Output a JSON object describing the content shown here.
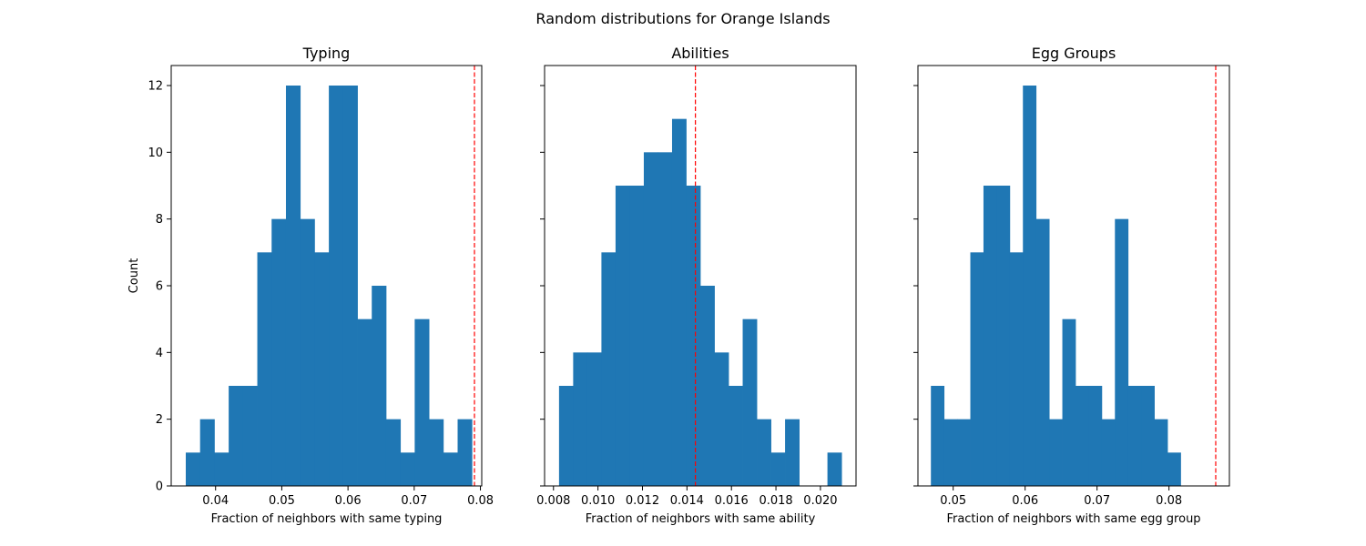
{
  "figure": {
    "title": "Random distributions for Orange Islands"
  },
  "colors": {
    "bar": "#1f77b4",
    "reference_line": "#ff0000"
  },
  "chart_data": [
    {
      "type": "bar",
      "title": "Typing",
      "xlabel": "Fraction of neighbors with same typing",
      "ylabel": "Count",
      "xlim": [
        0.0333,
        0.0802
      ],
      "ylim": [
        0,
        12.6
      ],
      "xticks": [
        0.04,
        0.05,
        0.06,
        0.07,
        0.08
      ],
      "xtick_labels": [
        "0.04",
        "0.05",
        "0.06",
        "0.07",
        "0.08"
      ],
      "yticks": [
        0,
        2,
        4,
        6,
        8,
        10,
        12
      ],
      "ytick_labels": [
        "0",
        "2",
        "4",
        "6",
        "8",
        "10",
        "12"
      ],
      "bin_start": 0.0355,
      "bin_width": 0.0021609,
      "counts": [
        1,
        2,
        1,
        3,
        3,
        7,
        8,
        12,
        8,
        7,
        12,
        12,
        5,
        6,
        2,
        1,
        5,
        2,
        1,
        2
      ],
      "reference_line": 0.0791
    },
    {
      "type": "bar",
      "title": "Abilities",
      "xlabel": "Fraction of neighbors with same ability",
      "ylabel": "",
      "xlim": [
        0.0076,
        0.0216
      ],
      "ylim": [
        0,
        12.6
      ],
      "xticks": [
        0.008,
        0.01,
        0.012,
        0.014,
        0.016,
        0.018,
        0.02
      ],
      "xtick_labels": [
        "0.008",
        "0.010",
        "0.012",
        "0.014",
        "0.016",
        "0.018",
        "0.020"
      ],
      "bin_start": 0.00825,
      "bin_width": 0.000635,
      "counts": [
        3,
        4,
        4,
        7,
        9,
        9,
        10,
        10,
        11,
        9,
        6,
        4,
        3,
        5,
        2,
        1,
        2,
        0,
        0,
        1
      ],
      "reference_line": 0.01438
    },
    {
      "type": "bar",
      "title": "Egg Groups",
      "xlabel": "Fraction of neighbors with same egg group",
      "ylabel": "",
      "xlim": [
        0.0451,
        0.0884
      ],
      "ylim": [
        0,
        12.6
      ],
      "xticks": [
        0.05,
        0.06,
        0.07,
        0.08
      ],
      "xtick_labels": [
        "0.05",
        "0.06",
        "0.07",
        "0.08"
      ],
      "bin_start": 0.0469,
      "bin_width": 0.0018274,
      "counts": [
        3,
        2,
        2,
        7,
        9,
        9,
        7,
        12,
        8,
        2,
        5,
        3,
        3,
        2,
        8,
        3,
        3,
        2,
        1,
        0
      ],
      "reference_line": 0.0865
    }
  ]
}
